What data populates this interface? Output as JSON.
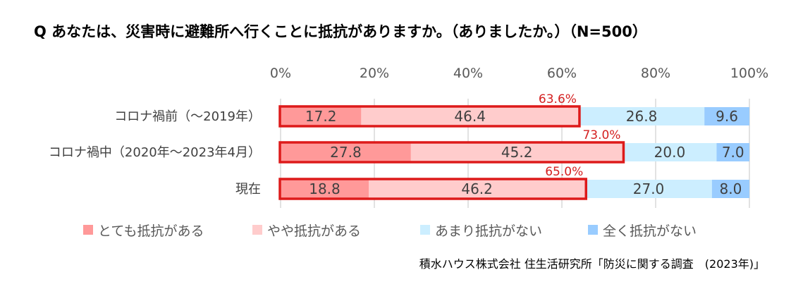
{
  "chart_data": {
    "type": "bar",
    "orientation": "horizontal",
    "stacked": "percent",
    "title": "Q あなたは、災害時に避難所へ行くことに抵抗がありますか。（ありましたか。）（N=500）",
    "categories": [
      "コロナ禍前（～2019年）",
      "コロナ禍中（2020年～2023年4月）",
      "現在"
    ],
    "xlim": [
      0,
      100
    ],
    "xticks": [
      "0%",
      "20%",
      "40%",
      "60%",
      "80%",
      "100%"
    ],
    "grid": true,
    "legend_position": "bottom",
    "series": [
      {
        "name": "とても抵抗がある",
        "values": [
          17.2,
          27.8,
          18.8
        ],
        "color": "#ff9999"
      },
      {
        "name": "やや抵抗がある",
        "values": [
          46.4,
          45.2,
          46.2
        ],
        "color": "#ffcccc"
      },
      {
        "name": "あまり抵抗がない",
        "values": [
          26.8,
          20.0,
          27.0
        ],
        "color": "#cceeff"
      },
      {
        "name": "全く抵抗がない",
        "values": [
          9.6,
          7.0,
          8.0
        ],
        "color": "#99ccff"
      }
    ],
    "totals": [
      "63.6%",
      "73.0%",
      "65.0%"
    ],
    "highlight_color": "#dd1a1a",
    "source": "積水ハウス株式会社 住生活研究所「防災に関する調査　(2023年)」"
  }
}
